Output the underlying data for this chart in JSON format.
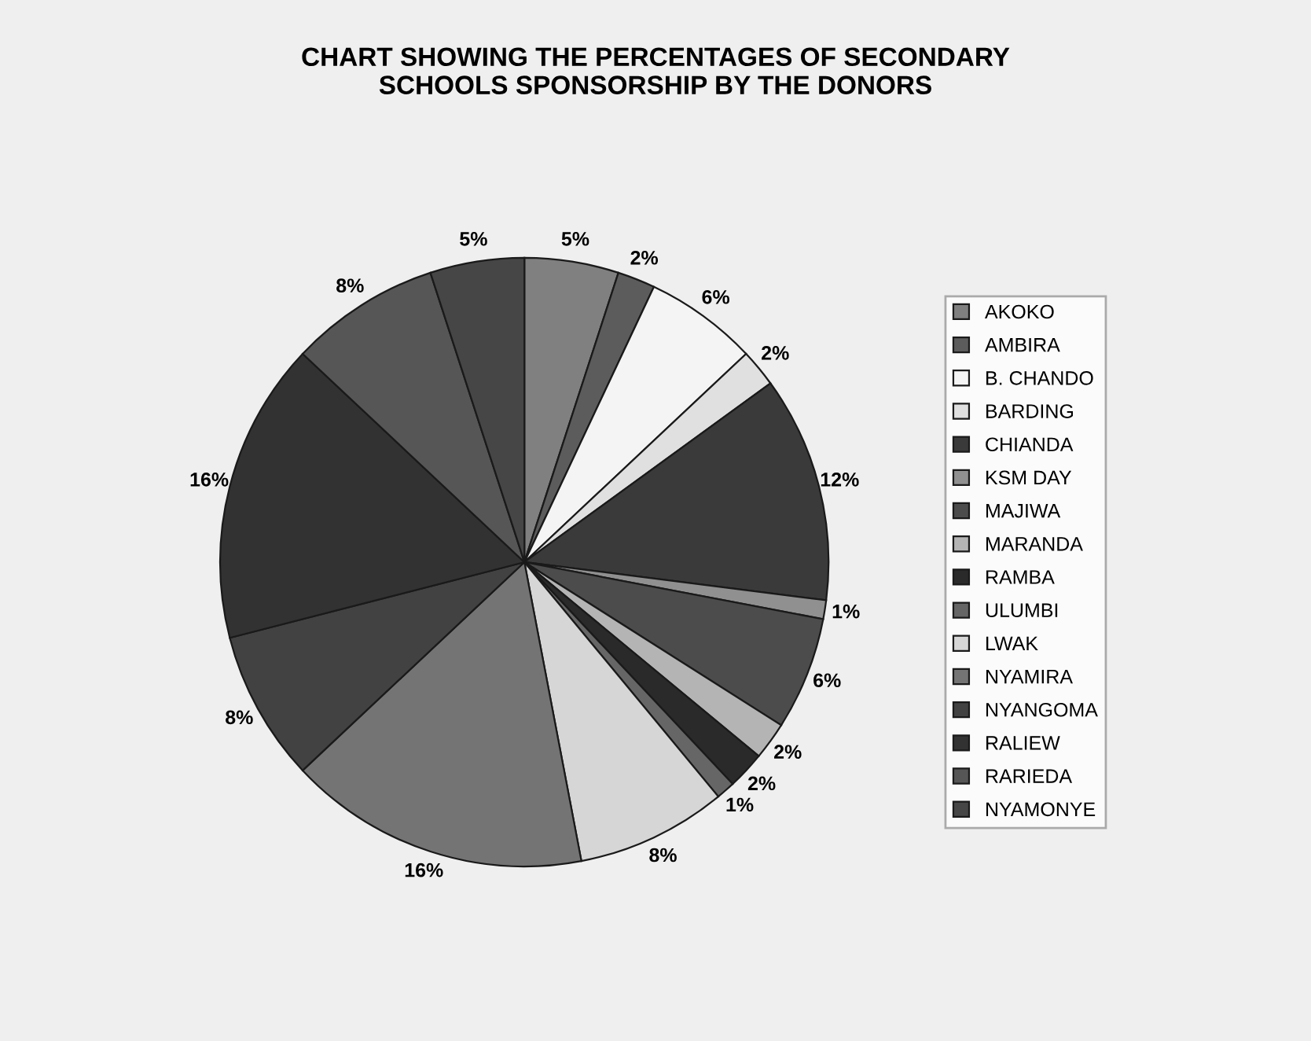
{
  "chart_data": {
    "type": "pie",
    "title": "CHART SHOWING THE PERCENTAGES OF SECONDARY\nSCHOOLS SPONSORSHIP BY THE DONORS",
    "categories": [
      "AKOKO",
      "AMBIRA",
      "B. CHANDO",
      "BARDING",
      "CHIANDA",
      "KSM DAY",
      "MAJIWA",
      "MARANDA",
      "RAMBA",
      "ULUMBI",
      "LWAK",
      "NYAMIRA",
      "NYANGOMA",
      "RALIEW",
      "RARIEDA",
      "NYAMONYE"
    ],
    "values": [
      5,
      2,
      6,
      2,
      12,
      1,
      6,
      2,
      2,
      1,
      8,
      16,
      8,
      16,
      8,
      5
    ],
    "value_labels": [
      "5%",
      "2%",
      "6%",
      "2%",
      "12%",
      "1%",
      "6%",
      "2%",
      "2%",
      "1%",
      "8%",
      "16%",
      "8%",
      "16%",
      "8%",
      "5%"
    ],
    "colors": [
      "#808080",
      "#5c5c5c",
      "#f4f4f4",
      "#e0e0e0",
      "#3a3a3a",
      "#909090",
      "#4c4c4c",
      "#b4b4b4",
      "#2a2a2a",
      "#666666",
      "#d6d6d6",
      "#747474",
      "#424242",
      "#323232",
      "#565656",
      "#464646"
    ],
    "legend": "right"
  }
}
